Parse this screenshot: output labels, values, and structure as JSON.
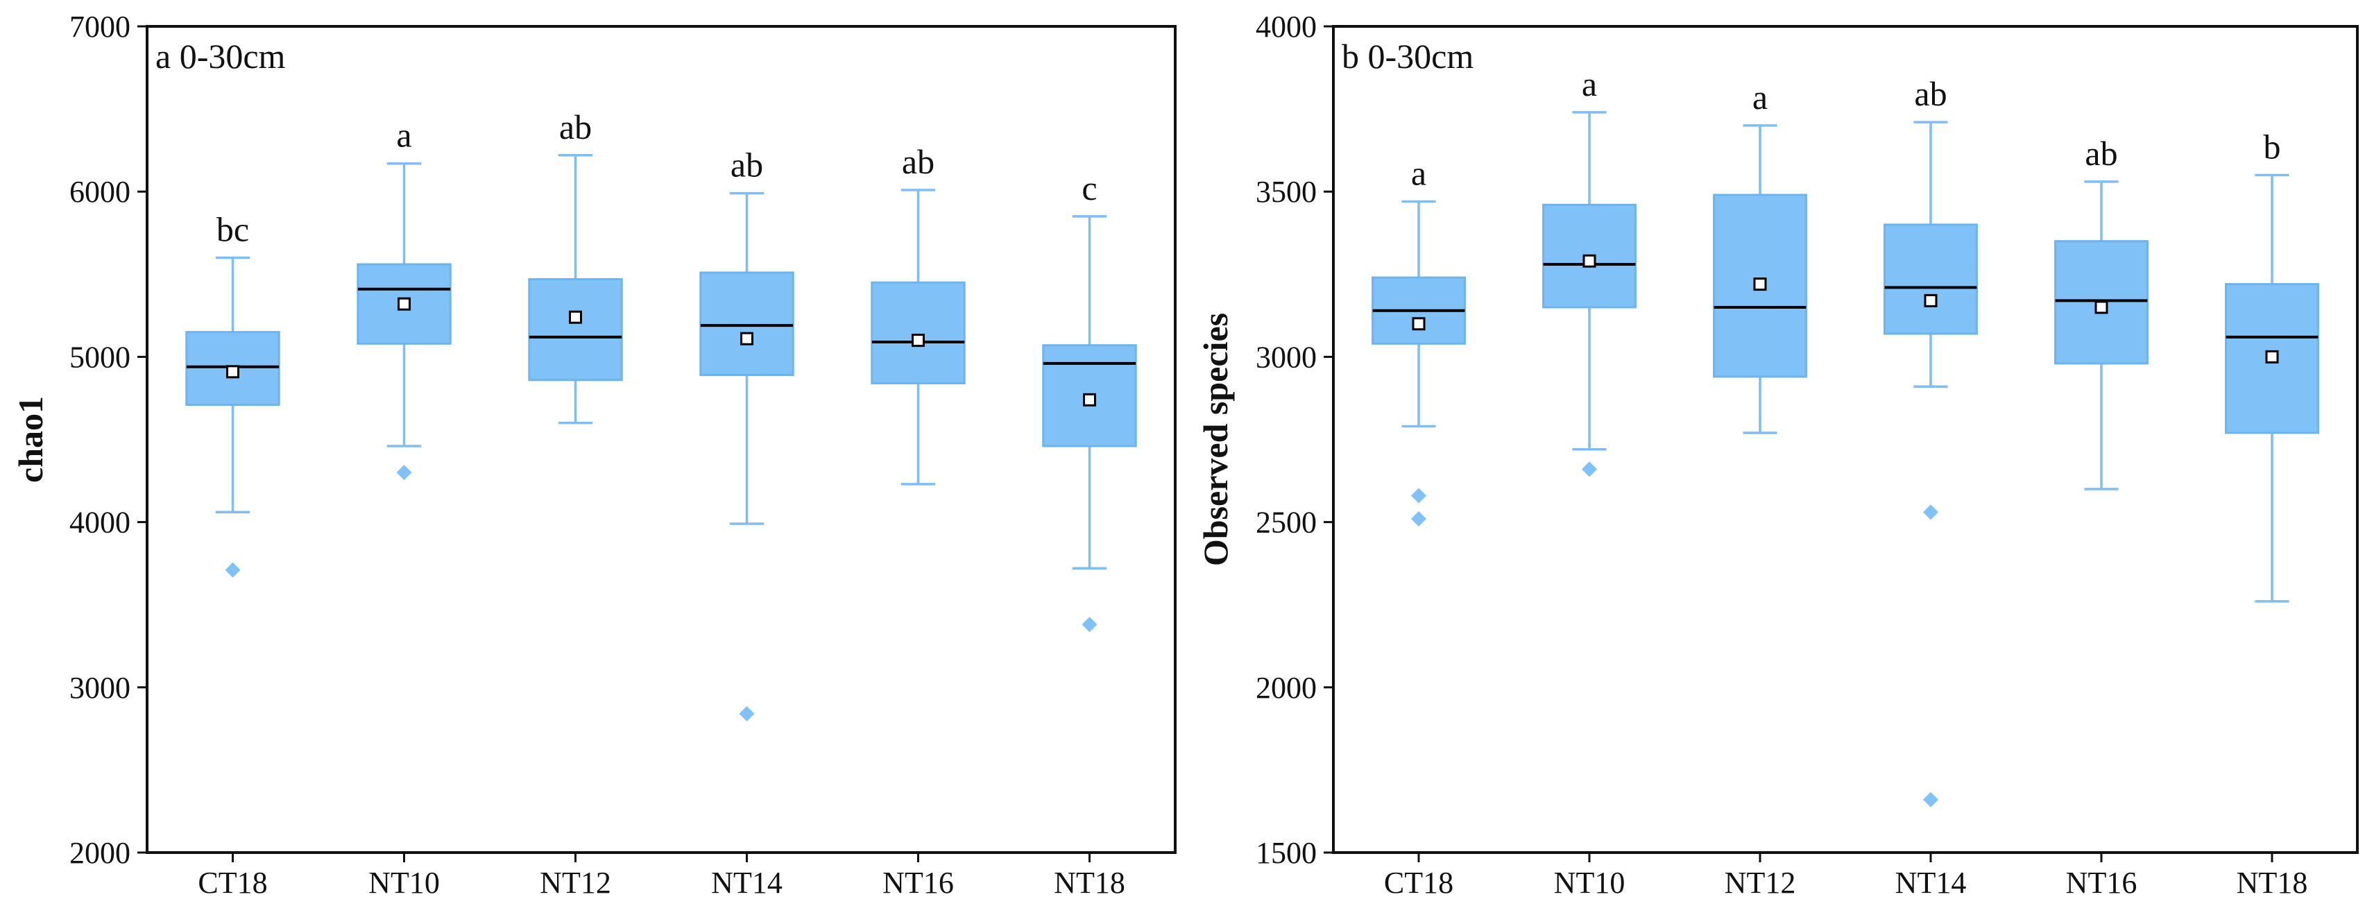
{
  "figure": {
    "background": "#ffffff"
  },
  "style": {
    "box_fill": "#80c2f7",
    "box_stroke": "#6db3ec",
    "whisker": "#7fbdf2",
    "median": "#000000",
    "outlier": "#80c2f7"
  },
  "chart_data": [
    {
      "id": "a",
      "type": "box",
      "panel_label": "a 0-30cm",
      "xlabel": "",
      "ylabel": "chao1",
      "ylim": [
        2000,
        7000
      ],
      "yticks": [
        2000,
        3000,
        4000,
        5000,
        6000,
        7000
      ],
      "ytick_labels": [
        "2000",
        "3000",
        "4000",
        "5000",
        "6000",
        "7000"
      ],
      "categories": [
        "CT18",
        "NT10",
        "NT12",
        "NT14",
        "NT16",
        "NT18"
      ],
      "boxes": [
        {
          "whisker_low": 4060,
          "q1": 4710,
          "median": 4940,
          "q3": 5150,
          "whisker_high": 5600,
          "mean": 4910,
          "outliers": [
            3710
          ],
          "sig_label": "bc"
        },
        {
          "whisker_low": 4460,
          "q1": 5080,
          "median": 5410,
          "q3": 5560,
          "whisker_high": 6170,
          "mean": 5320,
          "outliers": [
            4300
          ],
          "sig_label": "a"
        },
        {
          "whisker_low": 4600,
          "q1": 4860,
          "median": 5120,
          "q3": 5470,
          "whisker_high": 6220,
          "mean": 5240,
          "outliers": [],
          "sig_label": "ab"
        },
        {
          "whisker_low": 3990,
          "q1": 4890,
          "median": 5190,
          "q3": 5510,
          "whisker_high": 5990,
          "mean": 5110,
          "outliers": [
            2840
          ],
          "sig_label": "ab"
        },
        {
          "whisker_low": 4230,
          "q1": 4840,
          "median": 5090,
          "q3": 5450,
          "whisker_high": 6010,
          "mean": 5100,
          "outliers": [],
          "sig_label": "ab"
        },
        {
          "whisker_low": 3720,
          "q1": 4460,
          "median": 4960,
          "q3": 5070,
          "whisker_high": 5850,
          "mean": 4740,
          "outliers": [
            3380
          ],
          "sig_label": "c"
        }
      ]
    },
    {
      "id": "b",
      "type": "box",
      "panel_label": "b 0-30cm",
      "xlabel": "",
      "ylabel": "Observed species",
      "ylim": [
        1500,
        4000
      ],
      "yticks": [
        1500,
        2000,
        2500,
        3000,
        3500,
        4000
      ],
      "ytick_labels": [
        "1500",
        "2000",
        "2500",
        "3000",
        "3500",
        "4000"
      ],
      "categories": [
        "CT18",
        "NT10",
        "NT12",
        "NT14",
        "NT16",
        "NT18"
      ],
      "boxes": [
        {
          "whisker_low": 2790,
          "q1": 3040,
          "median": 3140,
          "q3": 3240,
          "whisker_high": 3470,
          "mean": 3100,
          "outliers": [
            2580,
            2510
          ],
          "sig_label": "a"
        },
        {
          "whisker_low": 2720,
          "q1": 3150,
          "median": 3280,
          "q3": 3460,
          "whisker_high": 3740,
          "mean": 3290,
          "outliers": [
            2660
          ],
          "sig_label": "a"
        },
        {
          "whisker_low": 2770,
          "q1": 2940,
          "median": 3150,
          "q3": 3490,
          "whisker_high": 3700,
          "mean": 3220,
          "outliers": [],
          "sig_label": "a"
        },
        {
          "whisker_low": 2910,
          "q1": 3070,
          "median": 3210,
          "q3": 3400,
          "whisker_high": 3710,
          "mean": 3170,
          "outliers": [
            2530,
            1660
          ],
          "sig_label": "ab"
        },
        {
          "whisker_low": 2600,
          "q1": 2980,
          "median": 3170,
          "q3": 3350,
          "whisker_high": 3530,
          "mean": 3150,
          "outliers": [],
          "sig_label": "ab"
        },
        {
          "whisker_low": 2260,
          "q1": 2770,
          "median": 3060,
          "q3": 3220,
          "whisker_high": 3550,
          "mean": 3000,
          "outliers": [],
          "sig_label": "b"
        }
      ]
    }
  ]
}
